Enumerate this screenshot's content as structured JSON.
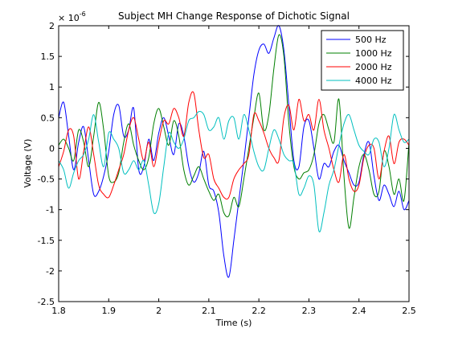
{
  "chart_data": {
    "type": "line",
    "title": "Subject MH Change Response of Dichotic Signal",
    "xlabel": "Time (s)",
    "ylabel": "Voltage (V)",
    "xlim": [
      1.8,
      2.5
    ],
    "ylim": [
      -2.5,
      2
    ],
    "y_exponent_label": "× 10",
    "y_exponent_power": "-6",
    "x_ticks": [
      {
        "value": 1.8,
        "label": "1.8"
      },
      {
        "value": 1.9,
        "label": "1.9"
      },
      {
        "value": 2.0,
        "label": "2"
      },
      {
        "value": 2.1,
        "label": "2.1"
      },
      {
        "value": 2.2,
        "label": "2.2"
      },
      {
        "value": 2.3,
        "label": "2.3"
      },
      {
        "value": 2.4,
        "label": "2.4"
      },
      {
        "value": 2.5,
        "label": "2.5"
      }
    ],
    "y_ticks": [
      {
        "value": 2,
        "label": "2"
      },
      {
        "value": 1.5,
        "label": "1.5"
      },
      {
        "value": 1,
        "label": "1"
      },
      {
        "value": 0.5,
        "label": "0.5"
      },
      {
        "value": 0,
        "label": "0"
      },
      {
        "value": -0.5,
        "label": "-0.5"
      },
      {
        "value": -1,
        "label": "-1"
      },
      {
        "value": -1.5,
        "label": "-1.5"
      },
      {
        "value": -2,
        "label": "-2"
      },
      {
        "value": -2.5,
        "label": "-2.5"
      }
    ],
    "grid": false,
    "legend_position": "top-right",
    "x": [
      1.8,
      1.81,
      1.82,
      1.83,
      1.84,
      1.85,
      1.86,
      1.87,
      1.88,
      1.89,
      1.9,
      1.91,
      1.92,
      1.93,
      1.94,
      1.95,
      1.96,
      1.97,
      1.98,
      1.99,
      2.0,
      2.01,
      2.02,
      2.03,
      2.04,
      2.05,
      2.06,
      2.07,
      2.08,
      2.09,
      2.1,
      2.11,
      2.12,
      2.13,
      2.14,
      2.15,
      2.16,
      2.17,
      2.18,
      2.19,
      2.2,
      2.21,
      2.22,
      2.23,
      2.24,
      2.25,
      2.26,
      2.27,
      2.28,
      2.29,
      2.3,
      2.31,
      2.32,
      2.33,
      2.34,
      2.35,
      2.36,
      2.37,
      2.38,
      2.39,
      2.4,
      2.41,
      2.42,
      2.43,
      2.44,
      2.45,
      2.46,
      2.47,
      2.48,
      2.49,
      2.5
    ],
    "series": [
      {
        "name": "500 Hz",
        "color": "#0000ff",
        "values": [
          0.5,
          0.75,
          0.2,
          -0.35,
          0.1,
          0.35,
          -0.2,
          -0.75,
          -0.7,
          -0.45,
          -0.05,
          0.55,
          0.7,
          0.2,
          0.3,
          0.65,
          -0.35,
          -0.3,
          0.15,
          -0.2,
          0.25,
          0.5,
          0.2,
          -0.1,
          0.4,
          0.2,
          -0.3,
          -0.55,
          -0.4,
          -0.05,
          -0.6,
          -0.7,
          -1.05,
          -1.75,
          -2.1,
          -1.5,
          -0.85,
          -0.2,
          0.5,
          1.2,
          1.6,
          1.7,
          1.55,
          1.8,
          2.0,
          1.6,
          0.7,
          -0.2,
          -0.3,
          0.35,
          0.45,
          0.0,
          -0.5,
          -0.25,
          -0.3,
          -0.05,
          0.05,
          -0.2,
          -0.4,
          -0.6,
          -0.55,
          -0.1,
          0.1,
          -0.45,
          -0.85,
          -0.6,
          -0.75,
          -0.95,
          -0.7,
          -1.0,
          -0.85
        ]
      },
      {
        "name": "1000 Hz",
        "color": "#007f00",
        "values": [
          0.05,
          0.15,
          0.0,
          -0.2,
          0.3,
          0.1,
          -0.3,
          0.2,
          0.75,
          0.3,
          -0.45,
          -0.55,
          -0.4,
          0.1,
          0.4,
          0.05,
          -0.2,
          -0.35,
          -0.15,
          0.4,
          0.65,
          0.35,
          0.05,
          0.45,
          0.2,
          -0.35,
          -0.6,
          -0.45,
          -0.3,
          -0.5,
          -0.7,
          -0.85,
          -0.75,
          -1.05,
          -1.1,
          -0.8,
          -0.95,
          -0.5,
          0.0,
          0.5,
          0.9,
          0.3,
          0.55,
          1.3,
          1.85,
          1.5,
          0.4,
          -0.3,
          -0.5,
          -0.4,
          -0.35,
          -0.1,
          0.4,
          0.55,
          0.3,
          0.1,
          0.8,
          -0.45,
          -1.3,
          -0.8,
          -0.3,
          -0.1,
          -0.35,
          -0.75,
          -0.7,
          -0.05,
          -0.3,
          -0.75,
          -0.5,
          -0.85,
          0.1
        ]
      },
      {
        "name": "2000 Hz",
        "color": "#ff0000",
        "values": [
          -0.3,
          -0.05,
          0.3,
          0.2,
          -0.5,
          -0.05,
          0.35,
          -0.1,
          -0.6,
          -0.75,
          -0.8,
          -0.6,
          -0.35,
          -0.1,
          0.3,
          0.5,
          0.15,
          -0.2,
          0.1,
          -0.3,
          0.1,
          0.45,
          0.4,
          0.65,
          0.5,
          0.2,
          0.75,
          0.9,
          0.3,
          -0.15,
          -0.1,
          -0.5,
          -0.65,
          -0.8,
          -0.8,
          -0.5,
          -0.35,
          -0.25,
          -0.1,
          0.55,
          0.45,
          0.25,
          0.0,
          -0.15,
          -0.2,
          0.5,
          0.7,
          0.3,
          0.8,
          0.45,
          0.55,
          0.3,
          0.8,
          0.3,
          0.0,
          -0.35,
          -0.55,
          -0.1,
          -0.5,
          -0.7,
          -0.6,
          -0.15,
          0.05,
          0.0,
          -0.5,
          -0.05,
          0.2,
          -0.25,
          0.1,
          0.15,
          0.05
        ]
      },
      {
        "name": "4000 Hz",
        "color": "#00bfbf",
        "values": [
          -0.2,
          -0.35,
          -0.65,
          -0.4,
          -0.2,
          -0.1,
          0.15,
          0.55,
          0.1,
          -0.3,
          0.25,
          0.15,
          0.0,
          -0.4,
          -0.35,
          -0.2,
          -0.35,
          -0.2,
          -0.6,
          -1.05,
          -0.9,
          -0.3,
          0.25,
          0.1,
          0.0,
          0.15,
          0.45,
          0.5,
          0.6,
          0.55,
          0.3,
          0.35,
          0.5,
          0.15,
          0.45,
          0.5,
          0.15,
          0.55,
          0.3,
          -0.05,
          -0.3,
          -0.35,
          0.0,
          0.3,
          0.15,
          -0.1,
          -0.2,
          -0.25,
          -0.75,
          -0.65,
          -0.45,
          -0.6,
          -1.35,
          -1.05,
          -0.6,
          -0.35,
          0.05,
          0.4,
          0.55,
          0.3,
          0.05,
          -0.05,
          -0.1,
          0.15,
          0.1,
          -0.3,
          0.0,
          0.55,
          0.3,
          0.1,
          0.15
        ]
      }
    ]
  }
}
